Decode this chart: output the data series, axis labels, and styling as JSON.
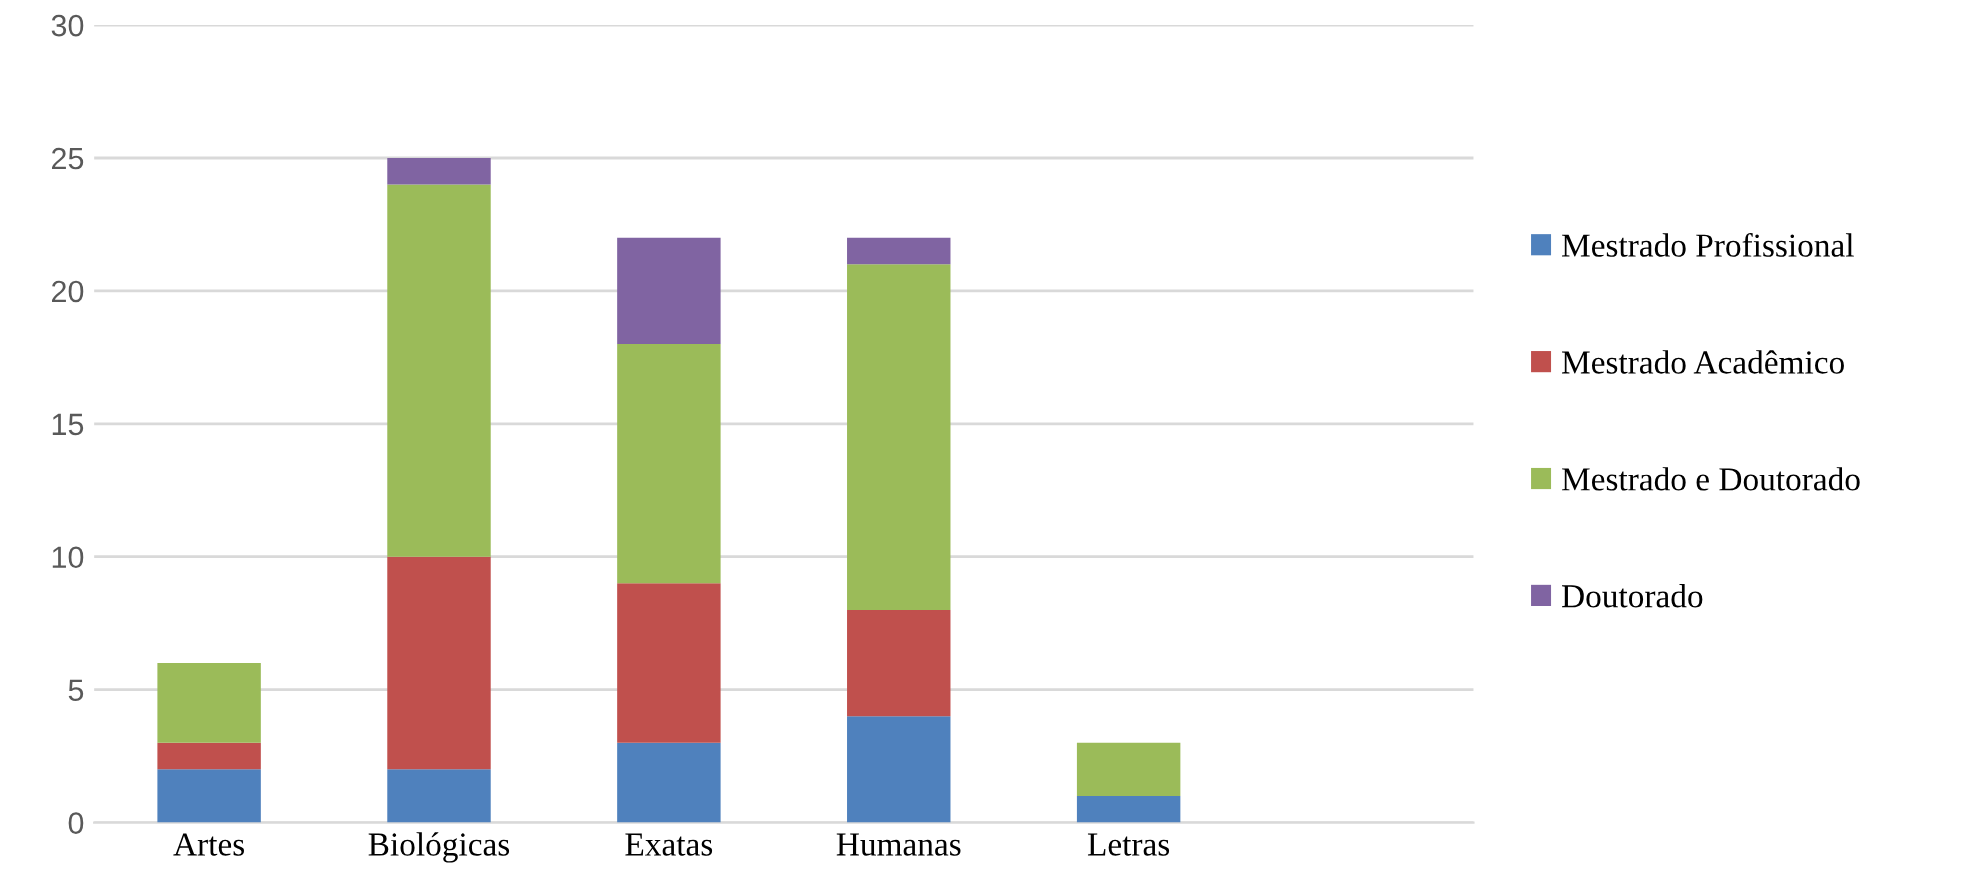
{
  "chart_data": {
    "type": "bar",
    "stacked": true,
    "categories": [
      "Artes",
      "Biológicas",
      "Exatas",
      "Humanas",
      "Letras",
      null
    ],
    "series": [
      {
        "name": "Mestrado Profissional",
        "color": "#4f81bd",
        "values": [
          2,
          2,
          3,
          4,
          1,
          null
        ]
      },
      {
        "name": "Mestrado Acadêmico",
        "color": "#c0504d",
        "values": [
          1,
          8,
          6,
          4,
          0,
          null
        ]
      },
      {
        "name": "Mestrado e Doutorado",
        "color": "#9bbb59",
        "values": [
          3,
          14,
          9,
          13,
          2,
          null
        ]
      },
      {
        "name": "Doutorado",
        "color": "#8064a2",
        "values": [
          0,
          1,
          4,
          1,
          0,
          null
        ]
      }
    ],
    "ylim": [
      0,
      30
    ],
    "yticks": [
      0,
      5,
      10,
      15,
      20,
      25,
      30
    ],
    "grid": "y",
    "legend": "right"
  }
}
